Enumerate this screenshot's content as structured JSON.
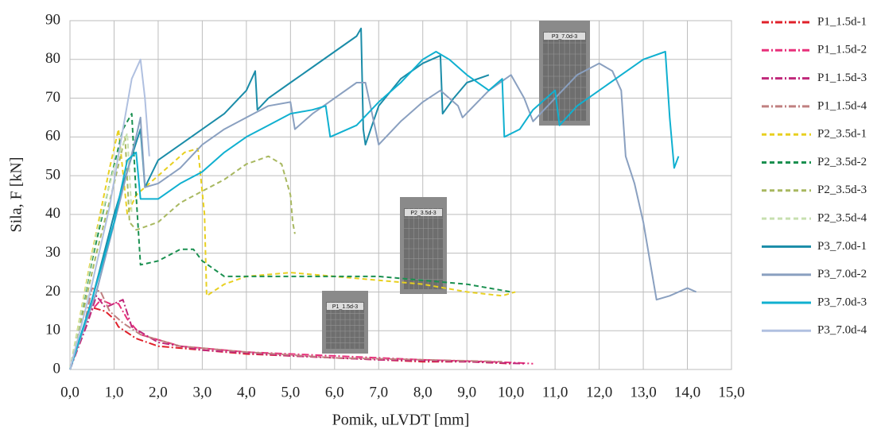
{
  "chart_data": {
    "type": "line",
    "xlabel": "Pomik, uLVDT [mm]",
    "ylabel": "Sila, F [kN]",
    "xlim": [
      0,
      15
    ],
    "ylim": [
      0,
      90
    ],
    "xticks": [
      {
        "value": 0,
        "label": "0,0"
      },
      {
        "value": 1,
        "label": "1,0"
      },
      {
        "value": 2,
        "label": "2,0"
      },
      {
        "value": 3,
        "label": "3,0"
      },
      {
        "value": 4,
        "label": "4,0"
      },
      {
        "value": 5,
        "label": "5,0"
      },
      {
        "value": 6,
        "label": "6,0"
      },
      {
        "value": 7,
        "label": "7,0"
      },
      {
        "value": 8,
        "label": "8,0"
      },
      {
        "value": 9,
        "label": "9,0"
      },
      {
        "value": 10,
        "label": "10,0"
      },
      {
        "value": 11,
        "label": "11,0"
      },
      {
        "value": 12,
        "label": "12,0"
      },
      {
        "value": 13,
        "label": "13,0"
      },
      {
        "value": 14,
        "label": "14,0"
      },
      {
        "value": 15,
        "label": "15,0"
      }
    ],
    "yticks": [
      0,
      10,
      20,
      30,
      40,
      50,
      60,
      70,
      80,
      90
    ],
    "grid": true,
    "legend": "right",
    "annotations": [
      "P3_7.0d-3",
      "P2_3.5d-3",
      "P1_1.5d-3"
    ],
    "series": [
      {
        "name": "P1_1.5d-1",
        "color": "#e0202a",
        "style": "dash-dot",
        "x": [
          0,
          0.3,
          0.5,
          0.8,
          1.0,
          1.1,
          1.5,
          2,
          3,
          4,
          5,
          6,
          7,
          8,
          9,
          10
        ],
        "values": [
          0,
          10,
          16,
          15,
          13,
          11,
          8,
          6,
          5,
          4,
          3.5,
          3,
          2.5,
          2,
          2,
          1.5
        ]
      },
      {
        "name": "P1_1.5d-2",
        "color": "#e8307a",
        "style": "dash-dot",
        "x": [
          0,
          0.4,
          0.7,
          0.9,
          1.1,
          1.3,
          1.6,
          2.5,
          4,
          6,
          8,
          10,
          10.5
        ],
        "values": [
          0,
          14,
          18,
          17,
          17,
          13,
          9,
          6,
          4.5,
          3.5,
          2.5,
          1.8,
          1.5
        ]
      },
      {
        "name": "P1_1.5d-3",
        "color": "#c0287a",
        "style": "dash-dot",
        "x": [
          0,
          0.4,
          0.6,
          0.8,
          1.0,
          1.2,
          1.4,
          2,
          3,
          5,
          7,
          9,
          10.3
        ],
        "values": [
          0,
          12,
          19,
          16,
          17,
          18,
          11,
          7,
          5,
          3.5,
          2.5,
          2,
          1.5
        ]
      },
      {
        "name": "P1_1.5d-4",
        "color": "#c08080",
        "style": "dash-dot",
        "x": [
          0,
          0.3,
          0.5,
          0.7,
          0.9,
          1.2,
          1.6,
          2.5,
          4,
          6,
          8,
          9.8
        ],
        "values": [
          0,
          10,
          21,
          20,
          15,
          12,
          9,
          6,
          4.5,
          3,
          2.5,
          2
        ]
      },
      {
        "name": "P2_3.5d-1",
        "color": "#e8d020",
        "style": "dash",
        "x": [
          0,
          0.5,
          0.9,
          1.1,
          1.3,
          1.5,
          1.8,
          2.2,
          2.6,
          2.9,
          3.05,
          3.1,
          3.5,
          4,
          5,
          6,
          7,
          8,
          9,
          9.8,
          10.1
        ],
        "values": [
          0,
          30,
          52,
          62,
          40,
          45,
          48,
          52,
          56,
          57,
          40,
          19,
          22,
          24,
          25,
          24,
          23,
          22,
          20,
          19,
          20
        ]
      },
      {
        "name": "P2_3.5d-2",
        "color": "#1a9050",
        "style": "dash",
        "x": [
          0,
          0.5,
          0.9,
          1.2,
          1.4,
          1.5,
          1.6,
          2,
          2.5,
          2.8,
          3,
          3.5,
          4,
          5,
          6,
          7,
          8,
          9,
          10
        ],
        "values": [
          0,
          28,
          48,
          62,
          66,
          45,
          27,
          28,
          31,
          31,
          28,
          24,
          24,
          24,
          24,
          24,
          23,
          22,
          20
        ]
      },
      {
        "name": "P2_3.5d-3",
        "color": "#a8b860",
        "style": "dash",
        "x": [
          0,
          0.6,
          1.0,
          1.25,
          1.35,
          1.5,
          2,
          2.5,
          3,
          3.5,
          4,
          4.5,
          4.8,
          5.0,
          5.05,
          5.1
        ],
        "values": [
          0,
          30,
          48,
          60,
          38,
          36,
          38,
          43,
          46,
          49,
          53,
          55,
          53,
          45,
          38,
          35
        ]
      },
      {
        "name": "P2_3.5d-4",
        "color": "#c8e0b0",
        "style": "dash",
        "x": [
          0,
          0.6,
          1.0,
          1.3,
          1.4
        ],
        "values": [
          0,
          35,
          52,
          61,
          40
        ]
      },
      {
        "name": "P3_7.0d-1",
        "color": "#1a8ca8",
        "style": "solid",
        "x": [
          0,
          0.5,
          1.0,
          1.4,
          1.6,
          1.7,
          2,
          2.5,
          3,
          3.5,
          4,
          4.2,
          4.25,
          4.5,
          5,
          5.5,
          6,
          6.5,
          6.6,
          6.65,
          6.7,
          7,
          7.5,
          8,
          8.4,
          8.45,
          8.7,
          9,
          9.5
        ],
        "values": [
          0,
          18,
          40,
          55,
          62,
          47,
          54,
          58,
          62,
          66,
          72,
          77,
          67,
          70,
          74,
          78,
          82,
          86,
          88,
          62,
          58,
          68,
          75,
          79,
          81,
          66,
          70,
          74,
          76
        ]
      },
      {
        "name": "P3_7.0d-2",
        "color": "#8aa0c0",
        "style": "solid",
        "x": [
          0,
          0.6,
          1.1,
          1.5,
          1.6,
          1.7,
          2,
          2.5,
          3,
          3.5,
          4,
          4.5,
          5,
          5.1,
          5.5,
          6,
          6.5,
          6.7,
          7,
          7.5,
          8,
          8.4,
          8.8,
          8.9,
          9.5,
          10,
          10.3,
          10.5,
          11,
          11.5,
          12,
          12.3,
          12.5,
          12.6,
          12.8,
          13,
          13.3,
          13.6,
          14,
          14.2
        ],
        "values": [
          0,
          20,
          42,
          60,
          65,
          47,
          48,
          52,
          58,
          62,
          65,
          68,
          69,
          62,
          66,
          70,
          74,
          74,
          58,
          64,
          69,
          72,
          68,
          65,
          72,
          76,
          70,
          64,
          70,
          76,
          79,
          77,
          72,
          55,
          48,
          38,
          18,
          19,
          21,
          20
        ]
      },
      {
        "name": "P3_7.0d-3",
        "color": "#10b0d0",
        "style": "solid",
        "x": [
          0,
          0.5,
          1.0,
          1.3,
          1.5,
          1.6,
          2,
          2.5,
          3,
          3.5,
          4,
          4.5,
          5,
          5.5,
          5.8,
          5.9,
          6.5,
          7,
          7.5,
          8,
          8.3,
          8.6,
          9,
          9.5,
          9.8,
          9.85,
          10.2,
          10.5,
          11,
          11.1,
          11.5,
          12,
          12.5,
          13,
          13.5,
          13.6,
          13.7,
          13.8
        ],
        "values": [
          0,
          18,
          38,
          54,
          56,
          44,
          44,
          48,
          51,
          56,
          60,
          63,
          66,
          67,
          68,
          60,
          63,
          69,
          74,
          80,
          82,
          80,
          76,
          72,
          75,
          60,
          62,
          67,
          72,
          63,
          68,
          72,
          76,
          80,
          82,
          65,
          52,
          55
        ]
      },
      {
        "name": "P3_7.0d-4",
        "color": "#b0c0e0",
        "style": "solid",
        "x": [
          0,
          0.5,
          0.9,
          1.2,
          1.4,
          1.6,
          1.7,
          1.8
        ],
        "values": [
          0,
          22,
          42,
          62,
          75,
          80,
          70,
          55
        ]
      }
    ]
  }
}
